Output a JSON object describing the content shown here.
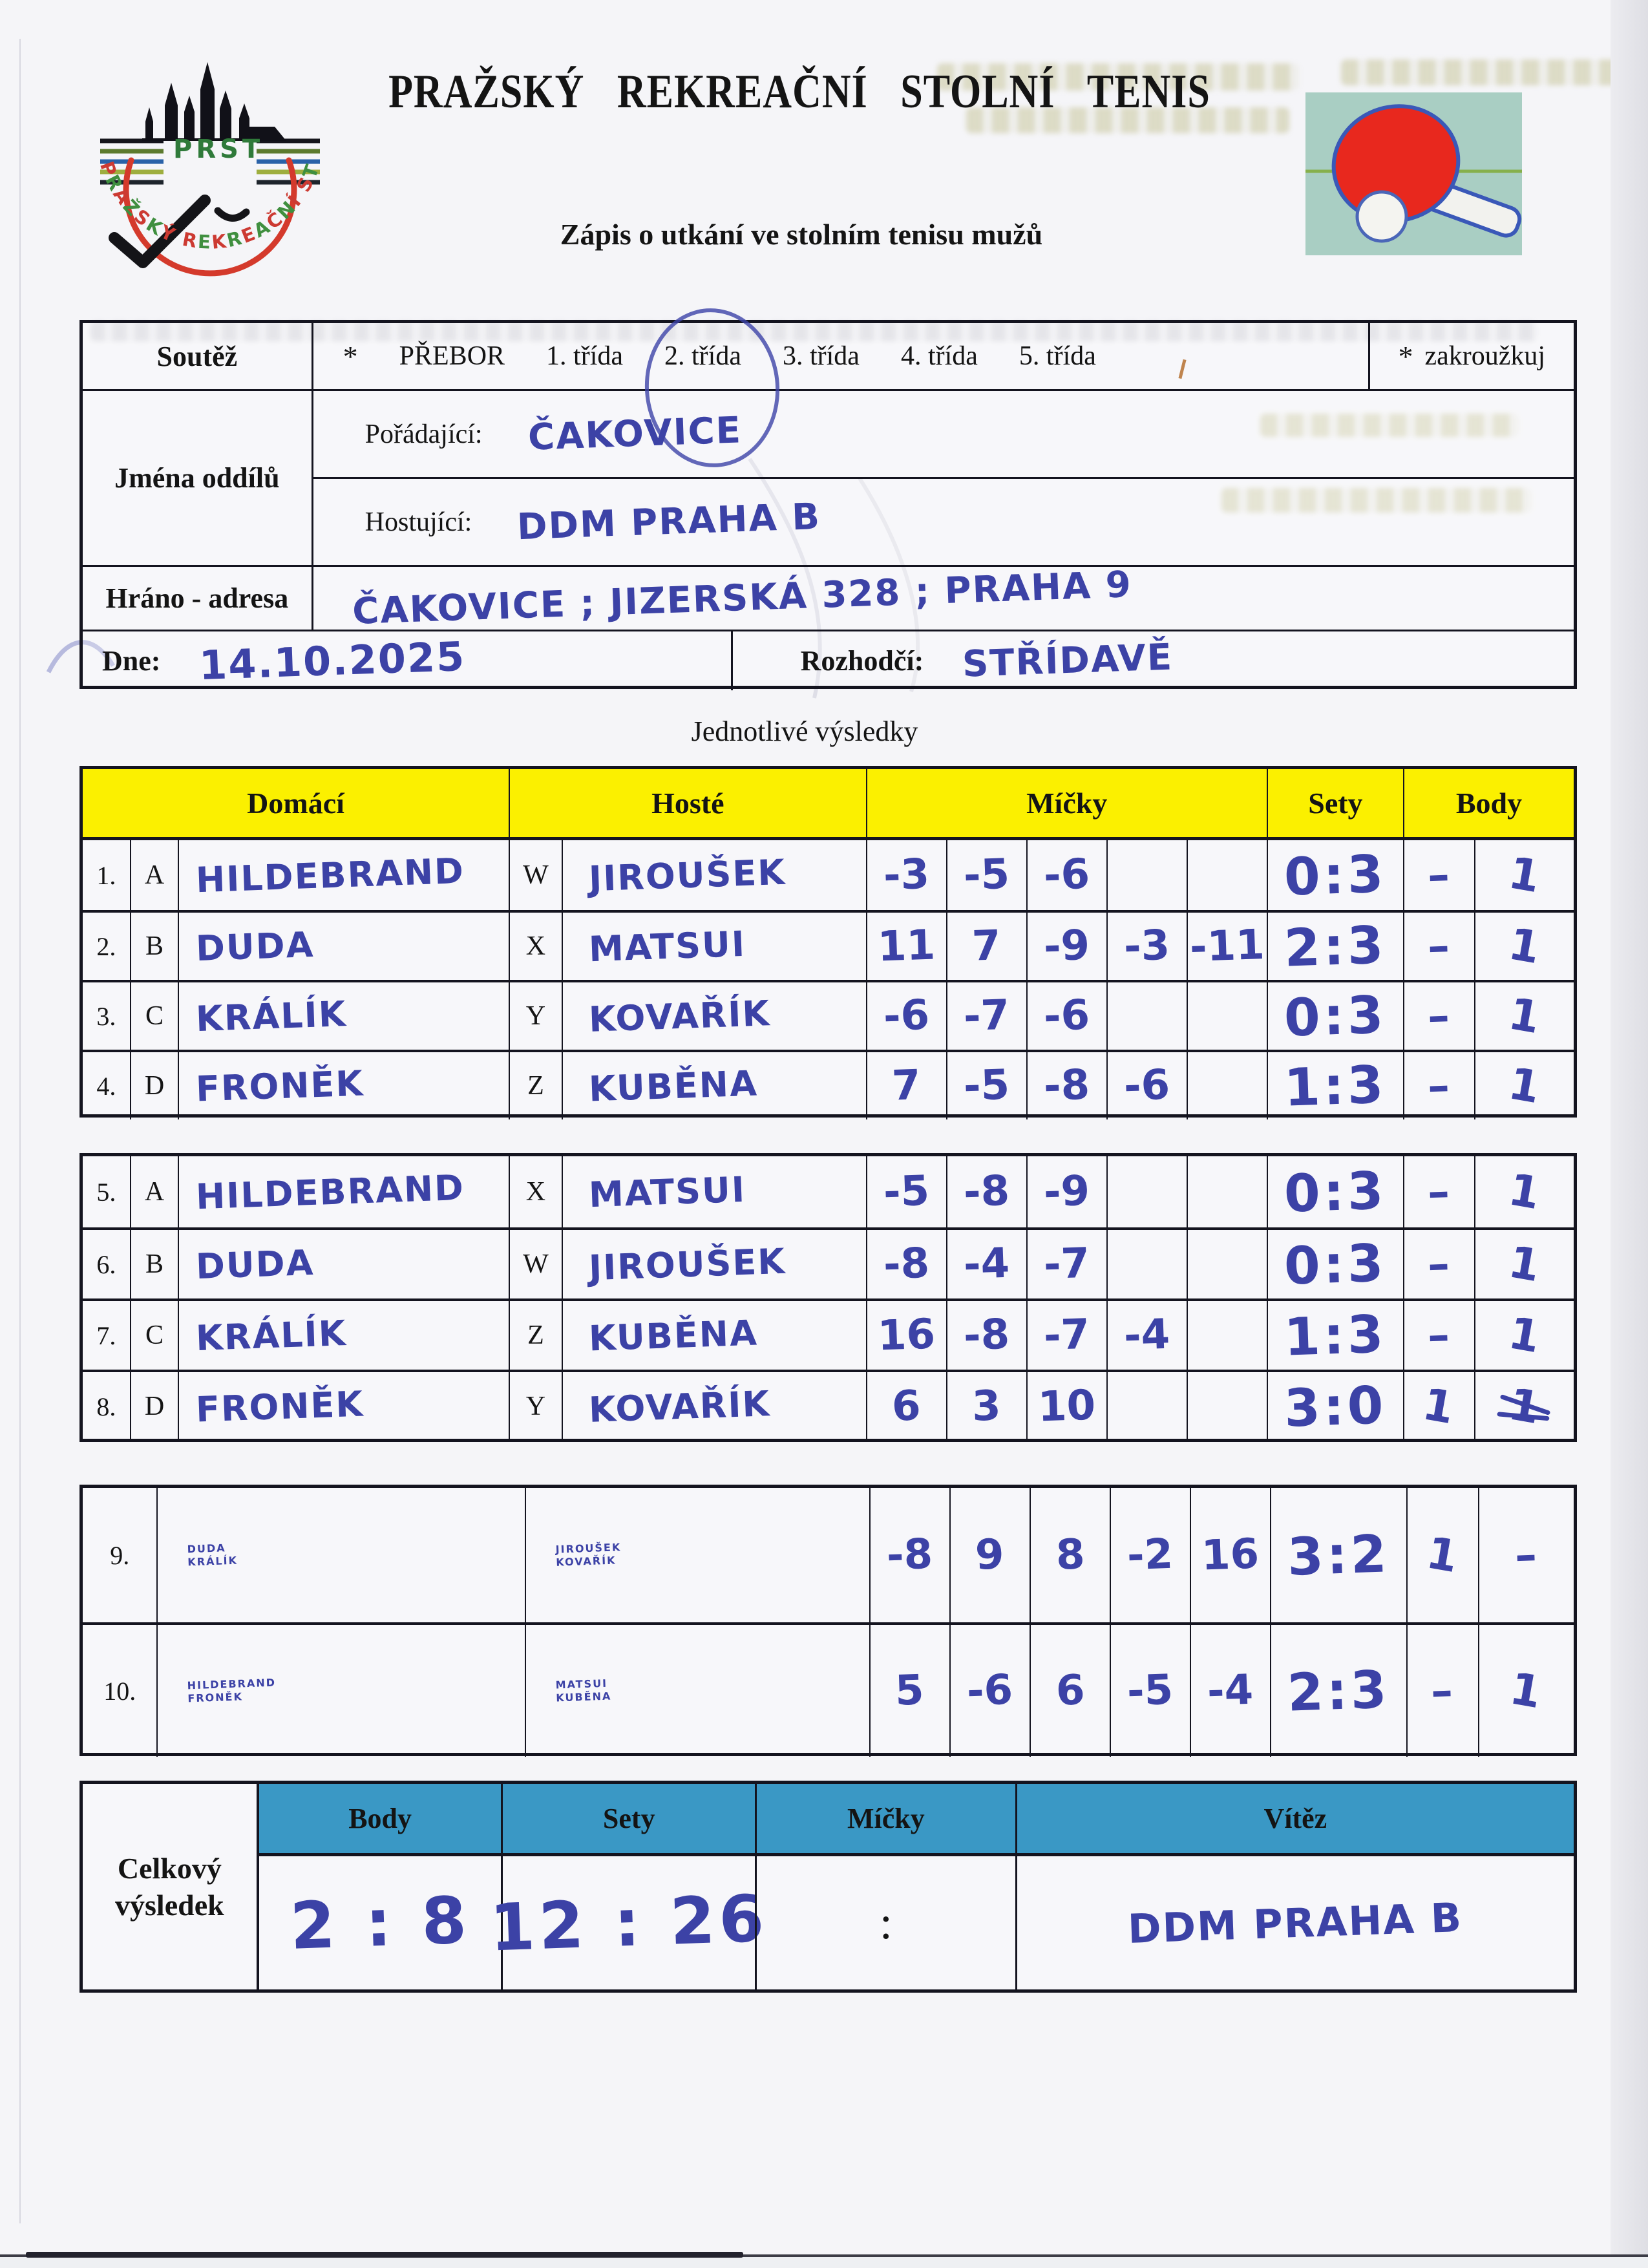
{
  "header": {
    "title": "PRAŽSKÝ  REKREAČNÍ  STOLNÍ  TENIS",
    "subtitle": "Zápis o utkání ve stolním tenisu mužů",
    "logo_text": "PRST",
    "logo_arc_text": "PRAŽSKÝ REKREAČNÍ STOLNÍ TENIS"
  },
  "form": {
    "soutez_label": "Soutěž",
    "soutez_star": "*",
    "soutez_options": [
      "PŘEBOR",
      "1. třída",
      "2. třída",
      "3. třída",
      "4. třída",
      "5. třída"
    ],
    "soutez_circled": "2. třída",
    "zakrouzkuj_star": "*",
    "zakrouzkuj_label": "zakroužkuj",
    "jmena_oddilu_label": "Jména  oddílů",
    "poradajici_label": "Pořádající:",
    "poradajici_value": "ČAKOVICE",
    "hostujici_label": "Hostující:",
    "hostujici_value": "DDM PRAHA B",
    "hrano_adresa_label": "Hráno - adresa",
    "hrano_adresa_value": "ČAKOVICE ; JIZERSKÁ 328 ; PRAHA 9",
    "dne_label": "Dne:",
    "dne_value": "14.10.2025",
    "rozhodci_label": "Rozhodčí:",
    "rozhodci_value": "STŘÍDAVĚ"
  },
  "results": {
    "section_title": "Jednotlivé  výsledky",
    "columns": {
      "domaci": "Domácí",
      "hoste": "Hosté",
      "micky": "Míčky",
      "sety": "Sety",
      "body": "Body"
    },
    "tables": [
      {
        "type": "singles",
        "rows": [
          {
            "no": "1.",
            "home_key": "A",
            "home": "HILDEBRAND",
            "away_key": "W",
            "away": "JIROUŠEK",
            "balls": [
              "-3",
              "-5",
              "-6",
              "",
              ""
            ],
            "sets": "0:3",
            "body_home": "–",
            "body_away": "1"
          },
          {
            "no": "2.",
            "home_key": "B",
            "home": "DUDA",
            "away_key": "X",
            "away": "MATSUI",
            "balls": [
              "11",
              "7",
              "-9",
              "-3",
              "-11"
            ],
            "sets": "2:3",
            "body_home": "–",
            "body_away": "1"
          },
          {
            "no": "3.",
            "home_key": "C",
            "home": "KRÁLÍK",
            "away_key": "Y",
            "away": "KOVAŘÍK",
            "balls": [
              "-6",
              "-7",
              "-6",
              "",
              ""
            ],
            "sets": "0:3",
            "body_home": "–",
            "body_away": "1"
          },
          {
            "no": "4.",
            "home_key": "D",
            "home": "FRONĚK",
            "away_key": "Z",
            "away": "KUBĚNA",
            "balls": [
              "7",
              "-5",
              "-8",
              "-6",
              ""
            ],
            "sets": "1:3",
            "body_home": "–",
            "body_away": "1"
          }
        ]
      },
      {
        "type": "singles",
        "rows": [
          {
            "no": "5.",
            "home_key": "A",
            "home": "HILDEBRAND",
            "away_key": "X",
            "away": "MATSUI",
            "balls": [
              "-5",
              "-8",
              "-9",
              "",
              ""
            ],
            "sets": "0:3",
            "body_home": "–",
            "body_away": "1"
          },
          {
            "no": "6.",
            "home_key": "B",
            "home": "DUDA",
            "away_key": "W",
            "away": "JIROUŠEK",
            "balls": [
              "-8",
              "-4",
              "-7",
              "",
              ""
            ],
            "sets": "0:3",
            "body_home": "–",
            "body_away": "1"
          },
          {
            "no": "7.",
            "home_key": "C",
            "home": "KRÁLÍK",
            "away_key": "Z",
            "away": "KUBĚNA",
            "balls": [
              "16",
              "-8",
              "-7",
              "-4",
              ""
            ],
            "sets": "1:3",
            "body_home": "–",
            "body_away": "1"
          },
          {
            "no": "8.",
            "home_key": "D",
            "home": "FRONĚK",
            "away_key": "Y",
            "away": "KOVAŘÍK",
            "balls": [
              "6",
              "3",
              "10",
              "",
              ""
            ],
            "sets": "3:0",
            "body_home": "1",
            "body_away": "1",
            "body_away_crossed": true
          }
        ]
      },
      {
        "type": "doubles",
        "rows": [
          {
            "no": "9.",
            "home": [
              "DUDA",
              "KRÁLÍK"
            ],
            "away": [
              "JIROUŠEK",
              "KOVAŘÍK"
            ],
            "balls": [
              "-8",
              "9",
              "8",
              "-2",
              "16"
            ],
            "sets": "3:2",
            "body_home": "1",
            "body_away": "–"
          },
          {
            "no": "10.",
            "home": [
              "HILDEBRAND",
              "FRONĚK"
            ],
            "away": [
              "MATSUI",
              "KUBĚNA"
            ],
            "balls": [
              "5",
              "-6",
              "6",
              "-5",
              "-4"
            ],
            "sets": "2:3",
            "body_home": "–",
            "body_away": "1"
          }
        ]
      }
    ]
  },
  "summary": {
    "label": "Celkový výsledek",
    "columns": {
      "body": "Body",
      "sety": "Sety",
      "micky": "Míčky",
      "vitez": "Vítěz"
    },
    "body_value": "2 : 8",
    "sety_value": "12 : 26",
    "micky_value": ":",
    "vitez_value": "DDM PRAHA B"
  },
  "colors": {
    "paper": "#f5f5f8",
    "header_yellow": "#fbf000",
    "header_blue": "#3a98c5",
    "ink": "#3c42a6",
    "printed": "#141414",
    "logo_red": "#cc3a32",
    "logo_green": "#3f8f3f"
  }
}
